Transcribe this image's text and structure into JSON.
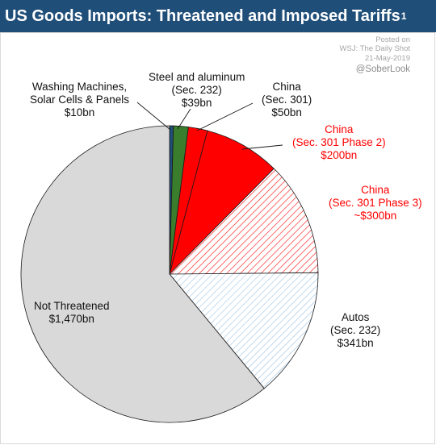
{
  "header": {
    "title": "US Goods Imports: Threatened and Imposed Tariffs",
    "title_superscript": "1"
  },
  "source": {
    "posted_on": "Posted on",
    "publisher": "WSJ: The Daily Shot",
    "date": "21-May-2019",
    "handle": "@SoberLook"
  },
  "colors": {
    "title_bar": "#1f4e79",
    "washing": "#1f4e79",
    "steel": "#3a7d2c",
    "china": "#ff0000",
    "china_phase3_hatch": "#ff0000",
    "autos_hatch": "#9dc3e6",
    "not_threatened": "#d9d9d9"
  },
  "chart_data": {
    "type": "pie",
    "start": "top, clockwise",
    "slices": [
      {
        "key": "washing",
        "lines": [
          "Washing Machines,",
          "Solar Cells & Panels",
          "$10bn"
        ],
        "value": 10,
        "fill": "solid",
        "color": "#1f4e79",
        "label_color": "#111111"
      },
      {
        "key": "steel",
        "lines": [
          "Steel and aluminum",
          "(Sec. 232)",
          "$39bn"
        ],
        "value": 39,
        "fill": "solid",
        "color": "#3a7d2c",
        "label_color": "#111111"
      },
      {
        "key": "china301",
        "lines": [
          "China",
          "(Sec. 301)",
          "$50bn"
        ],
        "value": 50,
        "fill": "solid",
        "color": "#ff0000",
        "label_color": "#111111"
      },
      {
        "key": "china_p2",
        "lines": [
          "China",
          "(Sec. 301 Phase 2)",
          "$200bn"
        ],
        "value": 200,
        "fill": "solid",
        "color": "#ff0000",
        "label_color": "#ff0000"
      },
      {
        "key": "china_p3",
        "lines": [
          "China",
          "(Sec. 301 Phase 3)",
          "~$300bn"
        ],
        "value": 300,
        "fill": "hatch",
        "color": "#ff0000",
        "label_color": "#ff0000"
      },
      {
        "key": "autos",
        "lines": [
          "Autos",
          "(Sec. 232)",
          "$341bn"
        ],
        "value": 341,
        "fill": "hatch",
        "color": "#9dc3e6",
        "label_color": "#111111"
      },
      {
        "key": "not_threatened",
        "lines": [
          "Not Threatened",
          "$1,470bn"
        ],
        "value": 1470,
        "fill": "solid",
        "color": "#d9d9d9",
        "label_color": "#111111"
      }
    ]
  }
}
